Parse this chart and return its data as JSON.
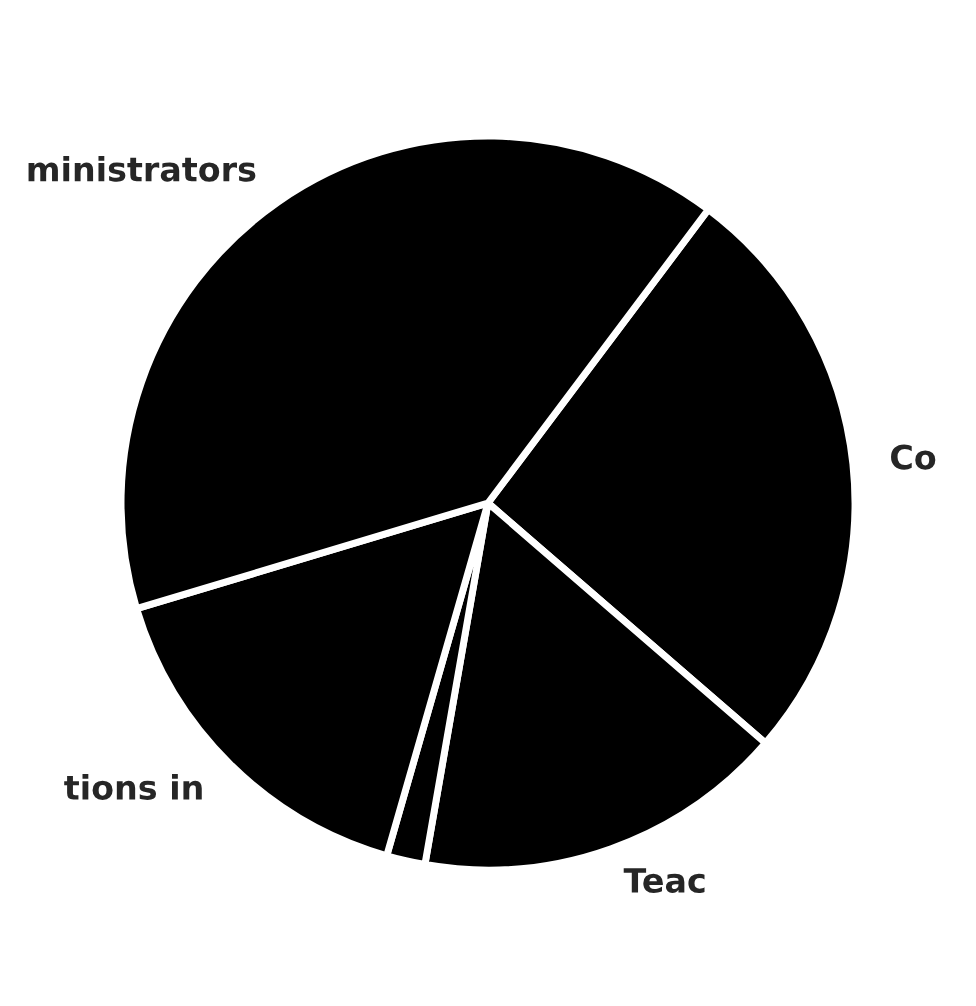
{
  "chart_data": {
    "type": "pie",
    "categories": [
      "Co",
      "Teac",
      null,
      "tions in",
      "ministrators"
    ],
    "values": [
      26.1,
      16.4,
      1.7,
      15.9,
      39.9
    ],
    "colors": [
      "#000000",
      "#000000",
      "#000000",
      "#000000",
      "#000000"
    ]
  }
}
